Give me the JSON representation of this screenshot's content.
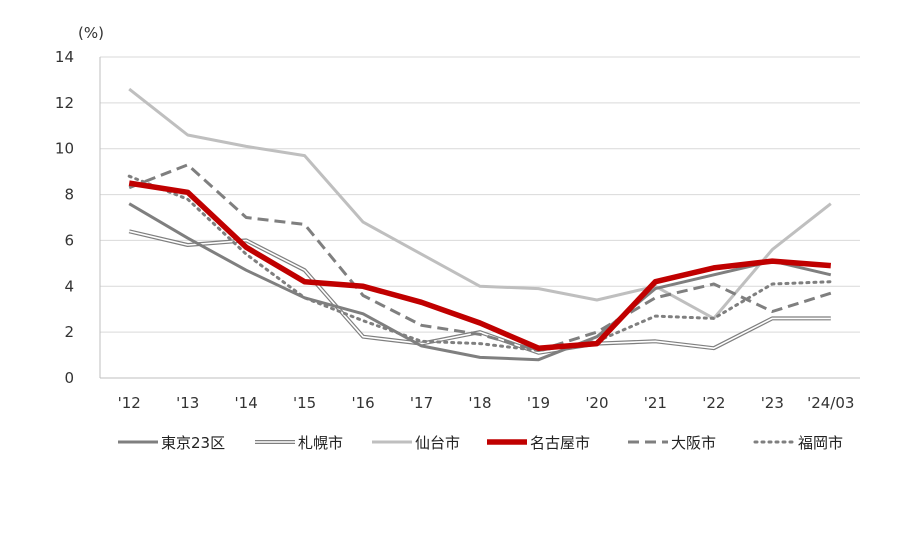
{
  "chart_data": {
    "type": "line",
    "title": "",
    "xlabel": "",
    "ylabel": "(%)",
    "ylim": [
      0,
      14
    ],
    "yticks": [
      "0",
      "2",
      "4",
      "6",
      "8",
      "10",
      "12",
      "14"
    ],
    "categories": [
      "'12",
      "'13",
      "'14",
      "'15",
      "'16",
      "'17",
      "'18",
      "'19",
      "'20",
      "'21",
      "'22",
      "'23",
      "'24/03"
    ],
    "grid": "horizontal",
    "legend": "bottom",
    "series": [
      {
        "name": "東京23区",
        "color": "#7f7f7f",
        "style": "solid",
        "values": [
          7.6,
          6.1,
          4.7,
          3.5,
          2.8,
          1.4,
          0.9,
          0.8,
          1.8,
          3.9,
          4.5,
          5.1,
          4.5
        ]
      },
      {
        "name": "札幌市",
        "color": "#7f7f7f",
        "style": "double",
        "values": [
          6.4,
          5.8,
          6.0,
          4.7,
          1.8,
          1.5,
          2.0,
          1.1,
          1.5,
          1.6,
          1.3,
          2.6,
          2.6
        ]
      },
      {
        "name": "仙台市",
        "color": "#bfbfbf",
        "style": "solid",
        "values": [
          12.6,
          10.6,
          10.1,
          9.7,
          6.8,
          5.4,
          4.0,
          3.9,
          3.4,
          4.0,
          2.6,
          5.6,
          7.6
        ]
      },
      {
        "name": "名古屋市",
        "color": "#c00000",
        "style": "bold",
        "values": [
          8.5,
          8.1,
          5.7,
          4.2,
          4.0,
          3.3,
          2.4,
          1.3,
          1.5,
          4.2,
          4.8,
          5.1,
          4.9
        ]
      },
      {
        "name": "大阪市",
        "color": "#7f7f7f",
        "style": "dashed",
        "values": [
          8.3,
          9.3,
          7.0,
          6.7,
          3.6,
          2.3,
          1.9,
          1.2,
          2.0,
          3.5,
          4.1,
          2.9,
          3.7
        ]
      },
      {
        "name": "福岡市",
        "color": "#7f7f7f",
        "style": "dotted",
        "values": [
          8.8,
          7.8,
          5.4,
          3.5,
          2.5,
          1.6,
          1.5,
          1.2,
          1.6,
          2.7,
          2.6,
          4.1,
          4.2
        ]
      }
    ]
  }
}
